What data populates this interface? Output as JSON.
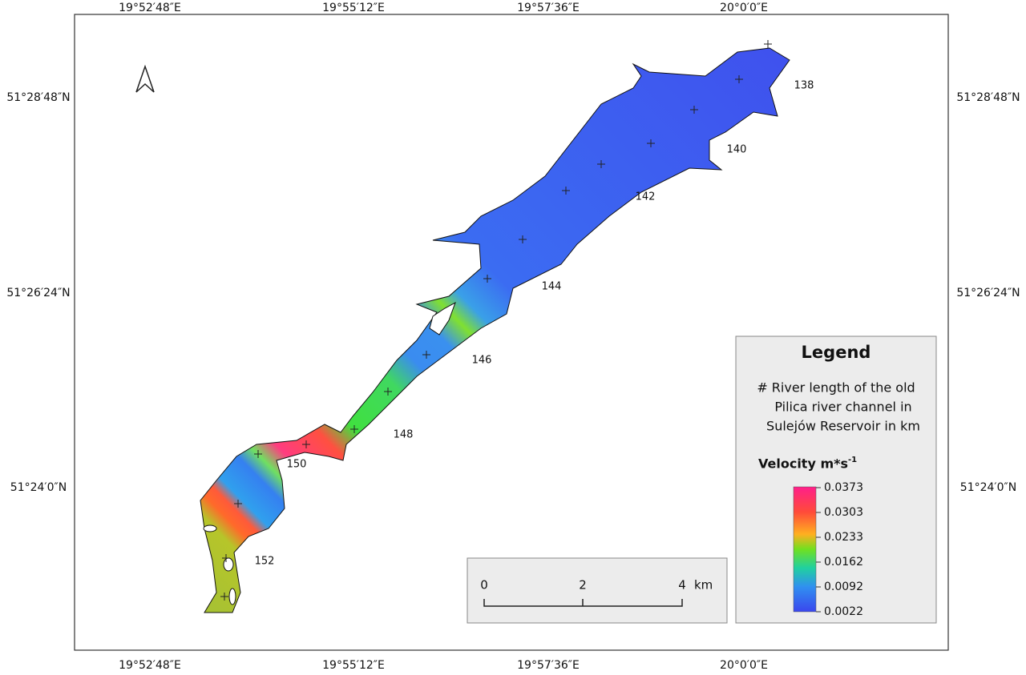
{
  "map": {
    "longitude_labels": [
      "19°52′48″E",
      "19°55′12″E",
      "19°57′36″E",
      "20°0′0″E"
    ],
    "latitude_labels": [
      "51°28′48″N",
      "51°26′24″N",
      "51°24′0″N"
    ],
    "river_km_labels": [
      "138",
      "140",
      "142",
      "144",
      "146",
      "148",
      "150",
      "152"
    ],
    "legend": {
      "title": "Legend",
      "description_lines": [
        "# River length of the old",
        "Pilica river channel in",
        "Sulejów Reservoir in km"
      ],
      "velocity_title": "Velocity m*s",
      "velocity_exponent": "-1",
      "colorbar_labels": [
        "0.0373",
        "0.0303",
        "0.0233",
        "0.0162",
        "0.0092",
        "0.0022"
      ]
    },
    "scale_bar": {
      "labels": [
        "0",
        "2",
        "4"
      ],
      "unit": "km"
    }
  }
}
